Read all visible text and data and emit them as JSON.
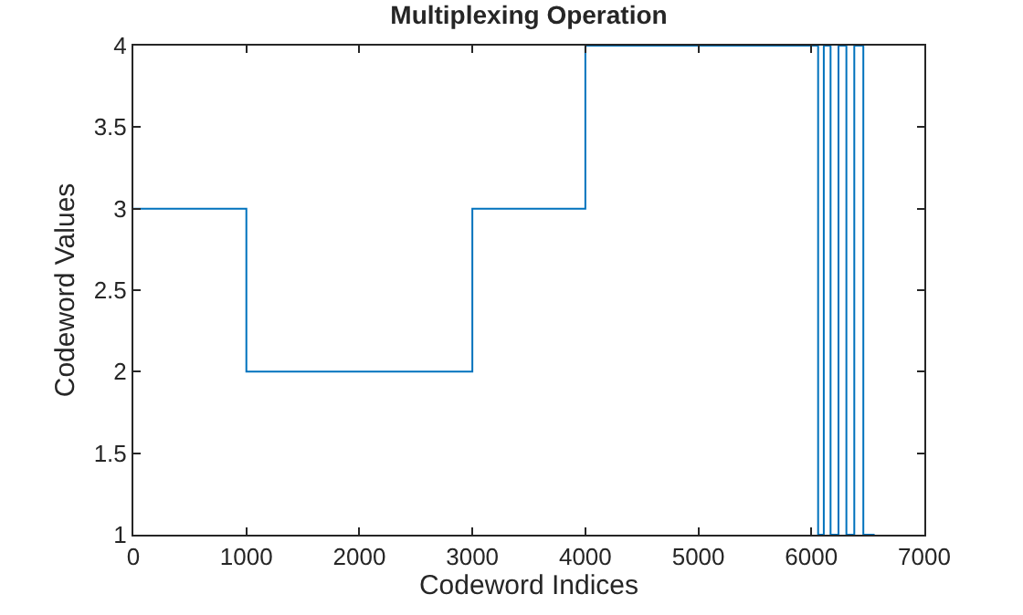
{
  "chart_data": {
    "type": "step",
    "title": "Multiplexing Operation",
    "xlabel": "Codeword Indices",
    "ylabel": "Codeword Values",
    "x": [
      0,
      1000,
      3000,
      4000,
      6060,
      6110,
      6170,
      6240,
      6310,
      6380,
      6460,
      6560
    ],
    "series": [
      {
        "color": "#0072bd",
        "values": [
          3,
          2,
          3,
          4,
          1,
          4,
          1,
          4,
          1,
          4,
          1,
          1
        ]
      }
    ],
    "xlim": [
      0,
      7000
    ],
    "xticks": [
      0,
      1000,
      2000,
      3000,
      4000,
      5000,
      6000,
      7000
    ],
    "ylim": [
      1,
      4
    ],
    "yticks": [
      1,
      1.5,
      2,
      2.5,
      3,
      3.5,
      4
    ],
    "grid": false,
    "marker": "none",
    "line_style": "solid"
  }
}
